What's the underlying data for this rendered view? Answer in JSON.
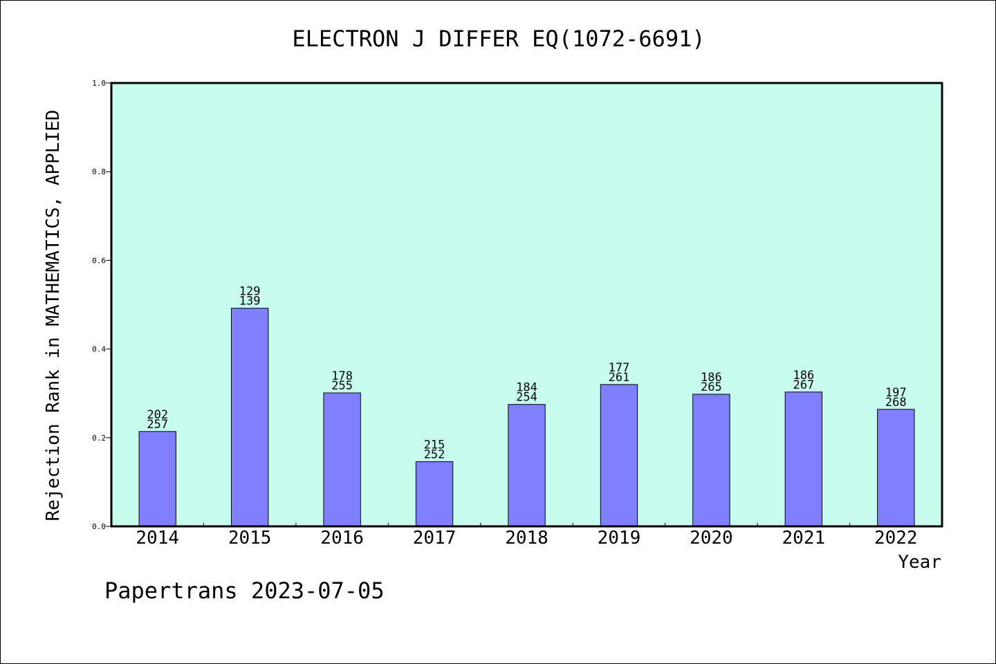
{
  "chart_data": {
    "type": "bar",
    "title": "ELECTRON J DIFFER EQ(1072-6691)",
    "xlabel": "Year",
    "ylabel": "Rejection Rank in MATHEMATICS, APPLIED",
    "ylim": [
      0,
      1.0
    ],
    "yticks": [
      "0.0",
      "0.2",
      "0.4",
      "0.6",
      "0.8",
      "1.0"
    ],
    "categories": [
      "2014",
      "2015",
      "2016",
      "2017",
      "2018",
      "2019",
      "2020",
      "2021",
      "2022"
    ],
    "values": [
      0.214,
      0.492,
      0.301,
      0.146,
      0.275,
      0.32,
      0.298,
      0.303,
      0.264
    ],
    "label_top": [
      "202",
      "129",
      "178",
      "215",
      "184",
      "177",
      "186",
      "186",
      "197"
    ],
    "label_bottom": [
      "257",
      "139",
      "255",
      "252",
      "254",
      "261",
      "265",
      "267",
      "268"
    ],
    "colors": {
      "plot_background": "#c8fcee",
      "bar_fill": "#8080ff",
      "bar_stroke": "#000000"
    },
    "grid": false
  },
  "footer": "Papertrans 2023-07-05"
}
